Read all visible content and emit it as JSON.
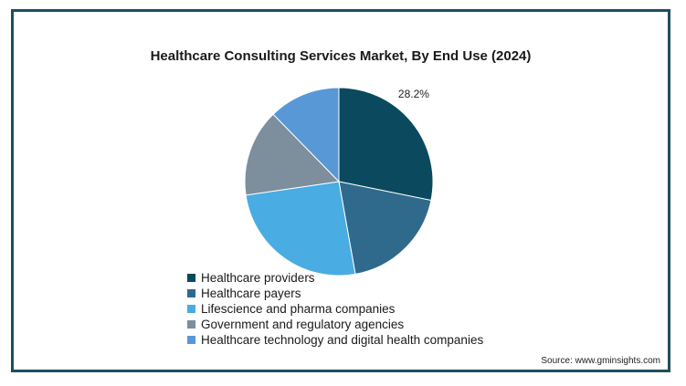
{
  "chart_data": {
    "type": "pie",
    "title": "Healthcare Consulting Services Market, By End Use (2024)",
    "slices": [
      {
        "label": "Healthcare providers",
        "value": 28.2,
        "color": "#0b4a5e",
        "data_label": "28.2%"
      },
      {
        "label": "Healthcare payers",
        "value": 19.0,
        "color": "#2f6a8c",
        "data_label": ""
      },
      {
        "label": "Lifescience and pharma companies",
        "value": 25.5,
        "color": "#49ace2",
        "data_label": ""
      },
      {
        "label": "Government and regulatory agencies",
        "value": 15.0,
        "color": "#7d8e9c",
        "data_label": ""
      },
      {
        "label": "Healthcare technology and digital health companies",
        "value": 12.3,
        "color": "#5898d6",
        "data_label": ""
      }
    ],
    "legend_position": "bottom-left"
  },
  "source": "Source: www.gminsights.com"
}
